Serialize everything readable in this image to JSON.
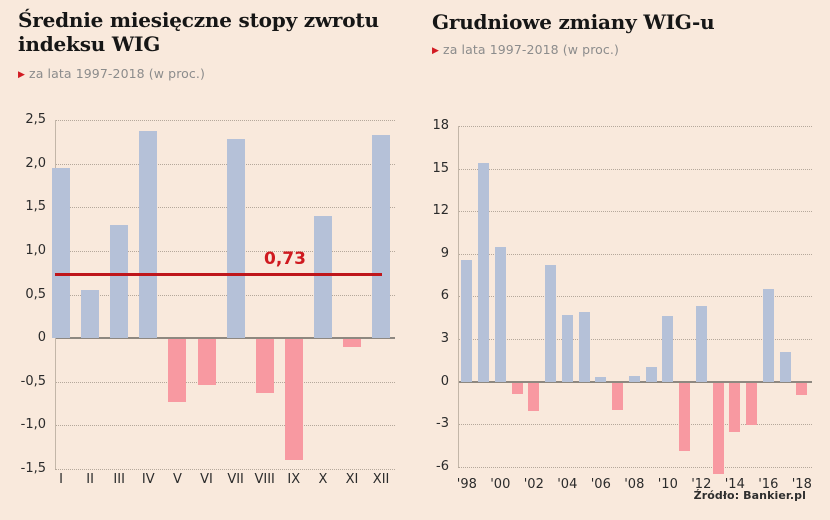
{
  "page": {
    "background_color": "#f9e9dc",
    "source_note": "Źródło: Bankier.pl"
  },
  "chart_data": [
    {
      "type": "bar",
      "title": "Średnie miesięczne stopy zwrotu indeksu WIG",
      "subtitle": "za lata 1997-2018 (w proc.)",
      "categories": [
        "I",
        "II",
        "III",
        "IV",
        "V",
        "VI",
        "VII",
        "VIII",
        "IX",
        "X",
        "XI",
        "XII"
      ],
      "values": [
        1.95,
        0.55,
        1.3,
        2.37,
        -0.72,
        -0.53,
        2.28,
        -0.62,
        -1.38,
        1.4,
        -0.09,
        2.33
      ],
      "xtick_labels": [
        "I",
        "II",
        "III",
        "IV",
        "V",
        "VI",
        "VII",
        "VIII",
        "IX",
        "X",
        "XI",
        "XII"
      ],
      "yticks": [
        2.5,
        2.0,
        1.5,
        1.0,
        0.5,
        0,
        -0.5,
        -1.0,
        -1.5
      ],
      "ytick_labels": [
        "2,5",
        "2,0",
        "1,5",
        "1,0",
        "0,5",
        "0",
        "-0,5",
        "-1,0",
        "-1,5"
      ],
      "ylim": [
        -1.5,
        2.5
      ],
      "grid": "dotted-horizontal",
      "legend": false,
      "reference_line": {
        "value": 0.73,
        "label": "0,73"
      },
      "colors": {
        "positive": "#b5c1d8",
        "negative": "#f899a1",
        "reference": "#bf161b"
      }
    },
    {
      "type": "bar",
      "title": "Grudniowe zmiany WIG-u",
      "subtitle": "za lata 1997-2018 (w proc.)",
      "categories": [
        "1998",
        "1999",
        "2000",
        "2001",
        "2002",
        "2003",
        "2004",
        "2005",
        "2006",
        "2007",
        "2008",
        "2009",
        "2010",
        "2011",
        "2012",
        "2013",
        "2014",
        "2015",
        "2016",
        "2017",
        "2018"
      ],
      "values": [
        8.6,
        15.4,
        9.5,
        -0.8,
        -2.0,
        8.2,
        4.7,
        4.9,
        0.3,
        -1.9,
        0.4,
        1.0,
        4.6,
        -4.8,
        5.3,
        -6.4,
        -3.5,
        -3.0,
        6.5,
        2.1,
        -0.9
      ],
      "xtick_labels": [
        "'98",
        "",
        "'00",
        "",
        "'02",
        "",
        "'04",
        "",
        "'06",
        "",
        "'08",
        "",
        "'10",
        "",
        "'12",
        "",
        "'14",
        "",
        "'16",
        "",
        "'18"
      ],
      "yticks": [
        18,
        15,
        12,
        9,
        6,
        3,
        0,
        -3,
        -6
      ],
      "ytick_labels": [
        "18",
        "15",
        "12",
        "9",
        "6",
        "3",
        "0",
        "-3",
        "-6"
      ],
      "ylim": [
        -6.5,
        18
      ],
      "grid": "dotted-horizontal",
      "legend": false,
      "reference_line": null,
      "colors": {
        "positive": "#b5c1d8",
        "negative": "#f899a1"
      }
    }
  ]
}
